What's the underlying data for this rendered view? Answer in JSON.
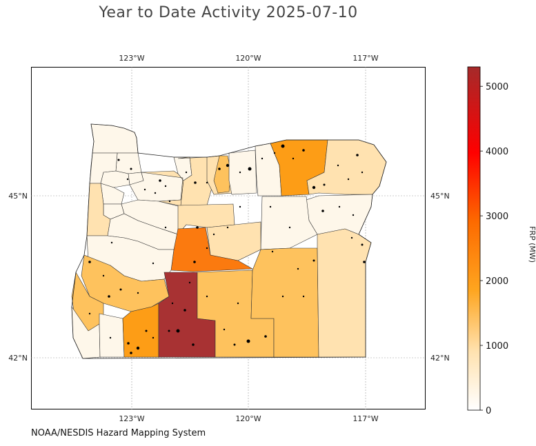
{
  "title": "Year to Date Activity 2025-07-10",
  "credit": "NOAA/NESDIS Hazard Mapping System",
  "colorbar": {
    "label": "FRP (MW)",
    "ticks": [
      "0",
      "1000",
      "2000",
      "3000",
      "4000",
      "5000"
    ],
    "min": 0,
    "max": 5300
  },
  "axes": {
    "lon_ticks": [
      "123°W",
      "120°W",
      "117°W"
    ],
    "lat_ticks": [
      "45°N",
      "42°N"
    ]
  },
  "colors": {
    "cream": "#fef7ea",
    "light": "#ffe2b0",
    "medium": "#fec25d",
    "orange": "#fd9d16",
    "dark_orange": "#fb7a0f",
    "maroon": "#a83233"
  }
}
